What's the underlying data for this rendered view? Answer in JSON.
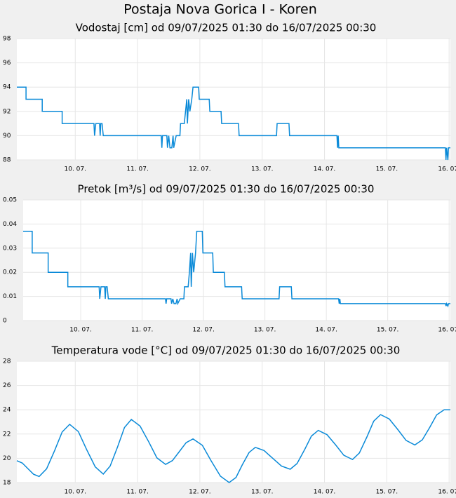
{
  "title": "Postaja Nova Gorica I - Koren",
  "chart_data": [
    {
      "type": "line",
      "title": "Vodostaj [cm] od 09/07/2025 01:30 do 16/07/2025 00:30",
      "color": "#0a8ad8",
      "grid": true,
      "xlim": [
        9.0625,
        16.0208
      ],
      "ylim": [
        88,
        98
      ],
      "yticks": [
        88,
        90,
        92,
        94,
        96,
        98
      ],
      "xticks": [
        {
          "value": 10,
          "label": "10. 07."
        },
        {
          "value": 11,
          "label": "11. 07."
        },
        {
          "value": 12,
          "label": "12. 07."
        },
        {
          "value": 13,
          "label": "13. 07."
        },
        {
          "value": 14,
          "label": "14. 07."
        },
        {
          "value": 15,
          "label": "15. 07."
        },
        {
          "value": 16,
          "label": "16. 07."
        }
      ],
      "x": [
        9.0625,
        9.21,
        9.21,
        9.47,
        9.47,
        9.79,
        9.79,
        10.3,
        10.31,
        10.33,
        10.39,
        10.4,
        10.41,
        10.43,
        10.45,
        11.38,
        11.39,
        11.4,
        11.47,
        11.48,
        11.5,
        11.52,
        11.55,
        11.57,
        11.58,
        11.62,
        11.68,
        11.69,
        11.75,
        11.77,
        11.79,
        11.8,
        11.82,
        11.84,
        11.87,
        11.89,
        11.98,
        11.99,
        12.15,
        12.16,
        12.34,
        12.35,
        12.62,
        12.63,
        13.23,
        13.24,
        13.43,
        13.44,
        14.2,
        14.21,
        14.22,
        14.23,
        15.94,
        15.95,
        15.96,
        15.98,
        15.99,
        16.02
      ],
      "values": [
        94,
        94,
        93,
        93,
        92,
        92,
        91,
        91,
        90,
        91,
        91,
        90,
        91,
        91,
        90,
        90,
        89,
        90,
        90,
        89,
        90,
        89,
        89,
        90,
        89,
        90,
        90,
        91,
        91,
        92,
        93,
        91,
        93,
        92,
        93,
        94,
        94,
        93,
        93,
        92,
        92,
        91,
        91,
        90,
        90,
        91,
        91,
        90,
        90,
        89,
        90,
        89,
        89,
        88,
        89,
        88,
        89,
        89
      ]
    },
    {
      "type": "line",
      "title": "Pretok [m³/s] od 09/07/2025 01:30 do 16/07/2025 00:30",
      "color": "#0a8ad8",
      "grid": true,
      "xlim": [
        9.0625,
        16.0208
      ],
      "ylim": [
        0,
        0.05
      ],
      "yticks": [
        0,
        0.01,
        0.02,
        0.03,
        0.04,
        0.05
      ],
      "xticks": [
        {
          "value": 10,
          "label": "10. 07."
        },
        {
          "value": 11,
          "label": "11. 07."
        },
        {
          "value": 12,
          "label": "12. 07."
        },
        {
          "value": 13,
          "label": "13. 07."
        },
        {
          "value": 14,
          "label": "14. 07."
        },
        {
          "value": 15,
          "label": "15. 07."
        },
        {
          "value": 16,
          "label": "16. 07."
        }
      ],
      "x": [
        9.0625,
        9.21,
        9.21,
        9.47,
        9.47,
        9.79,
        9.79,
        10.3,
        10.31,
        10.33,
        10.39,
        10.4,
        10.41,
        10.43,
        10.45,
        11.38,
        11.39,
        11.4,
        11.47,
        11.48,
        11.5,
        11.52,
        11.55,
        11.57,
        11.58,
        11.62,
        11.68,
        11.69,
        11.75,
        11.77,
        11.79,
        11.8,
        11.82,
        11.84,
        11.87,
        11.89,
        11.98,
        11.99,
        12.15,
        12.16,
        12.34,
        12.35,
        12.62,
        12.63,
        13.23,
        13.24,
        13.43,
        13.44,
        14.2,
        14.21,
        14.22,
        14.23,
        15.94,
        15.95,
        15.96,
        15.98,
        15.99,
        16.02
      ],
      "values": [
        0.037,
        0.037,
        0.028,
        0.028,
        0.02,
        0.02,
        0.014,
        0.014,
        0.009,
        0.014,
        0.014,
        0.009,
        0.014,
        0.014,
        0.009,
        0.009,
        0.007,
        0.009,
        0.009,
        0.007,
        0.009,
        0.007,
        0.007,
        0.009,
        0.007,
        0.009,
        0.009,
        0.014,
        0.014,
        0.02,
        0.028,
        0.014,
        0.028,
        0.02,
        0.028,
        0.037,
        0.037,
        0.028,
        0.028,
        0.02,
        0.02,
        0.014,
        0.014,
        0.009,
        0.009,
        0.014,
        0.014,
        0.009,
        0.009,
        0.007,
        0.009,
        0.007,
        0.007,
        0.006,
        0.007,
        0.006,
        0.007,
        0.007
      ]
    },
    {
      "type": "line",
      "title": "Temperatura vode [°C] od 09/07/2025 01:30 do 16/07/2025 00:30",
      "color": "#0a8ad8",
      "grid": true,
      "xlim": [
        9.0625,
        16.0208
      ],
      "ylim": [
        18,
        28
      ],
      "yticks": [
        18,
        20,
        22,
        24,
        26,
        28
      ],
      "xticks": [
        {
          "value": 10,
          "label": "10. 07."
        },
        {
          "value": 11,
          "label": "11. 07."
        },
        {
          "value": 12,
          "label": "12. 07."
        },
        {
          "value": 13,
          "label": "13. 07."
        },
        {
          "value": 14,
          "label": "14. 07."
        },
        {
          "value": 15,
          "label": "15. 07."
        },
        {
          "value": 16,
          "label": "16. 07."
        }
      ],
      "x": [
        9.0625,
        9.15,
        9.24,
        9.33,
        9.42,
        9.54,
        9.67,
        9.79,
        9.91,
        10.05,
        10.18,
        10.32,
        10.45,
        10.56,
        10.68,
        10.79,
        10.9,
        11.04,
        11.18,
        11.31,
        11.45,
        11.56,
        11.67,
        11.78,
        11.89,
        12.04,
        12.18,
        12.33,
        12.47,
        12.58,
        12.68,
        12.79,
        12.89,
        13.03,
        13.17,
        13.31,
        13.45,
        13.56,
        13.68,
        13.79,
        13.9,
        14.04,
        14.18,
        14.31,
        14.45,
        14.56,
        14.68,
        14.79,
        14.9,
        15.04,
        15.18,
        15.31,
        15.45,
        15.57,
        15.69,
        15.8,
        15.92,
        16.02
      ],
      "values": [
        19.8,
        19.61,
        19.15,
        18.69,
        18.5,
        19.13,
        20.65,
        22.17,
        22.8,
        22.2,
        20.75,
        19.3,
        18.7,
        19.36,
        20.95,
        22.54,
        23.2,
        22.66,
        21.35,
        20.04,
        19.5,
        19.81,
        20.55,
        21.29,
        21.6,
        21.07,
        19.8,
        18.53,
        18.0,
        18.42,
        19.45,
        20.48,
        20.9,
        20.64,
        20.0,
        19.36,
        19.1,
        19.57,
        20.7,
        21.83,
        22.3,
        21.95,
        21.1,
        20.25,
        19.9,
        20.44,
        21.75,
        23.06,
        23.6,
        23.24,
        22.35,
        21.47,
        21.1,
        21.52,
        22.55,
        23.58,
        24.0,
        24.0
      ]
    }
  ]
}
